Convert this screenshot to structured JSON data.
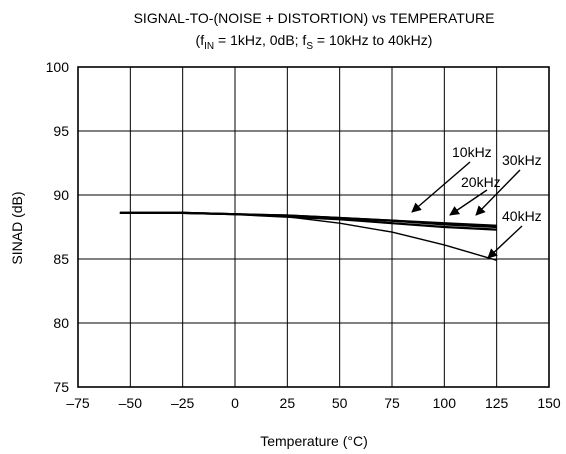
{
  "chart_data": {
    "type": "line",
    "title": "SIGNAL-TO-(NOISE + DISTORTION) vs TEMPERATURE",
    "subtitle": {
      "parts": [
        "(f",
        "IN",
        " = 1kHz, 0dB; f",
        "S",
        " = 10kHz to 40kHz)"
      ]
    },
    "xlabel": "Temperature (°C)",
    "ylabel": "SINAD (dB)",
    "xlim": [
      -75,
      150
    ],
    "ylim": [
      75,
      100
    ],
    "xticks": [
      -75,
      -50,
      -25,
      0,
      25,
      50,
      75,
      100,
      125,
      150
    ],
    "yticks": [
      75,
      80,
      85,
      90,
      95,
      100
    ],
    "xtick_labels": [
      "–75",
      "–50",
      "–25",
      "0",
      "25",
      "50",
      "75",
      "100",
      "125",
      "150"
    ],
    "ytick_labels": [
      "75",
      "80",
      "85",
      "90",
      "95",
      "100"
    ],
    "grid": true,
    "series": [
      {
        "name": "10kHz",
        "x": [
          -55,
          -25,
          0,
          25,
          50,
          75,
          100,
          125
        ],
        "y": [
          88.6,
          88.6,
          88.5,
          88.4,
          88.2,
          88.0,
          87.8,
          87.6
        ]
      },
      {
        "name": "20kHz",
        "x": [
          -55,
          -25,
          0,
          25,
          50,
          75,
          100,
          125
        ],
        "y": [
          88.6,
          88.6,
          88.5,
          88.4,
          88.2,
          88.0,
          87.7,
          87.5
        ]
      },
      {
        "name": "30kHz",
        "x": [
          -55,
          -25,
          0,
          25,
          50,
          75,
          100,
          125
        ],
        "y": [
          88.6,
          88.6,
          88.5,
          88.3,
          88.1,
          87.8,
          87.5,
          87.3
        ]
      },
      {
        "name": "40kHz",
        "x": [
          -55,
          -25,
          0,
          25,
          50,
          75,
          100,
          125
        ],
        "y": [
          88.6,
          88.6,
          88.5,
          88.3,
          87.8,
          87.1,
          86.1,
          84.9
        ]
      }
    ],
    "annotations": [
      {
        "label": "10kHz",
        "points_to_series": "10kHz"
      },
      {
        "label": "20kHz",
        "points_to_series": "20kHz"
      },
      {
        "label": "30kHz",
        "points_to_series": "30kHz"
      },
      {
        "label": "40kHz",
        "points_to_series": "40kHz"
      }
    ]
  }
}
